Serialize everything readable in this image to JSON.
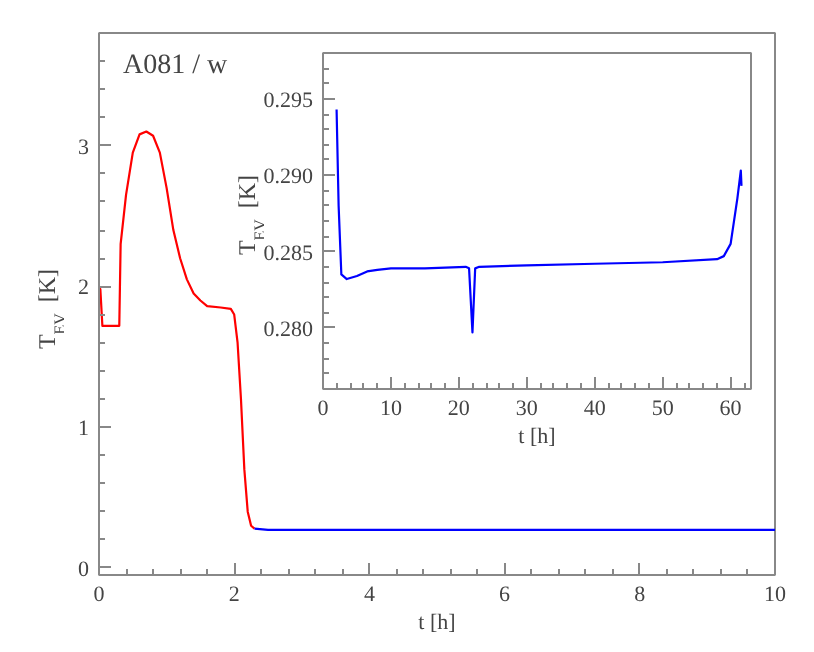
{
  "chart_data": [
    {
      "type": "line",
      "title": "A081 / w",
      "xlabel": "t [h]",
      "ylabel": "T$_{EV}$ [K]",
      "xlim": [
        0,
        10
      ],
      "ylim": [
        -0.05,
        3.8
      ],
      "xticks": [
        0,
        2,
        4,
        6,
        8,
        10
      ],
      "yticks": [
        0,
        1,
        2,
        3
      ],
      "grid": false,
      "series": [
        {
          "color": "#ff0000",
          "x": [
            0,
            0.02,
            0.05,
            0.3,
            0.32,
            0.4,
            0.5,
            0.6,
            0.7,
            0.8,
            0.9,
            1.0,
            1.1,
            1.2,
            1.3,
            1.4,
            1.5,
            1.6,
            1.8,
            1.95,
            2.0,
            2.05,
            2.1,
            2.15,
            2.2,
            2.25,
            2.3
          ],
          "values": [
            2.0,
            1.98,
            1.72,
            1.72,
            2.3,
            2.65,
            2.95,
            3.08,
            3.1,
            3.07,
            2.95,
            2.7,
            2.4,
            2.2,
            2.05,
            1.95,
            1.9,
            1.86,
            1.85,
            1.84,
            1.8,
            1.6,
            1.2,
            0.7,
            0.4,
            0.3,
            0.28
          ]
        },
        {
          "color": "#0000ff",
          "x": [
            2.3,
            2.5,
            3,
            4,
            5,
            6,
            7,
            8,
            9,
            10
          ],
          "values": [
            0.28,
            0.27,
            0.27,
            0.27,
            0.27,
            0.27,
            0.27,
            0.27,
            0.27,
            0.27
          ]
        }
      ]
    },
    {
      "type": "line",
      "xlabel": "t [h]",
      "ylabel": "T$_{EV}$ [K]",
      "xlim": [
        0,
        63
      ],
      "ylim": [
        0.276,
        0.298
      ],
      "xticks": [
        0,
        10,
        20,
        30,
        40,
        50,
        60
      ],
      "yticks": [
        {
          "value": 0.28,
          "label": "0.280"
        },
        {
          "value": 0.285,
          "label": "0.285"
        },
        {
          "value": 0.29,
          "label": "0.290"
        },
        {
          "value": 0.295,
          "label": "0.295"
        }
      ],
      "grid": false,
      "series": [
        {
          "color": "#0000ff",
          "x": [
            2,
            2.3,
            2.7,
            3.5,
            5,
            6.5,
            8,
            10,
            15,
            21,
            21.5,
            22,
            22.4,
            23,
            30,
            40,
            50,
            58,
            59,
            60,
            61,
            61.5,
            61.6
          ],
          "values": [
            0.2943,
            0.288,
            0.2835,
            0.2832,
            0.2834,
            0.2837,
            0.2838,
            0.2839,
            0.2839,
            0.284,
            0.2839,
            0.2797,
            0.2839,
            0.284,
            0.2841,
            0.2842,
            0.2843,
            0.2845,
            0.2847,
            0.2855,
            0.2885,
            0.2903,
            0.2893
          ]
        }
      ]
    }
  ]
}
